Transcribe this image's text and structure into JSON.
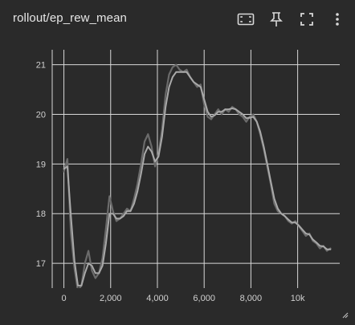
{
  "card": {
    "title": "rollout/ep_rew_mean"
  },
  "toolbar": {
    "icons": [
      "fit-to-data-icon",
      "pin-icon",
      "fullscreen-icon",
      "more-vert-icon"
    ]
  },
  "colors": {
    "background": "#2a2a2a",
    "grid": "#d8d8d8",
    "raw_line": "#6b6b6b",
    "smoothed_line": "#a9a9a9",
    "text": "#e6e6e6"
  },
  "chart_data": {
    "type": "line",
    "title": "rollout/ep_rew_mean",
    "xlabel": "",
    "ylabel": "",
    "xlim": [
      -500,
      11800
    ],
    "ylim": [
      16.5,
      21.3
    ],
    "grid": true,
    "x_ticks": [
      0,
      2000,
      4000,
      6000,
      8000,
      10000
    ],
    "x_tick_labels": [
      "0",
      "2,000",
      "4,000",
      "6,000",
      "8,000",
      "10k"
    ],
    "y_ticks": [
      17,
      18,
      19,
      20,
      21
    ],
    "y_tick_labels": [
      "17",
      "18",
      "19",
      "20",
      "21"
    ],
    "series": [
      {
        "role": "raw",
        "x": [
          0,
          150,
          300,
          450,
          600,
          750,
          900,
          1050,
          1200,
          1350,
          1500,
          1650,
          1800,
          1950,
          2100,
          2250,
          2400,
          2550,
          2700,
          2850,
          3000,
          3150,
          3300,
          3450,
          3600,
          3750,
          3900,
          4050,
          4200,
          4350,
          4500,
          4650,
          4800,
          4950,
          5100,
          5250,
          5400,
          5550,
          5700,
          5850,
          6000,
          6150,
          6300,
          6450,
          6600,
          6750,
          6900,
          7050,
          7200,
          7350,
          7500,
          7650,
          7800,
          7950,
          8100,
          8250,
          8400,
          8550,
          8700,
          8850,
          9000,
          9150,
          9300,
          9450,
          9600,
          9750,
          9900,
          10050,
          10200,
          10350,
          10500,
          10650,
          10800,
          10950,
          11100,
          11250,
          11400
        ],
        "y": [
          18.85,
          19.1,
          17.6,
          16.9,
          16.45,
          16.55,
          17.0,
          17.25,
          16.85,
          16.7,
          16.8,
          17.1,
          17.7,
          18.35,
          18.05,
          17.85,
          17.9,
          18.0,
          18.1,
          18.05,
          18.3,
          18.6,
          19.0,
          19.45,
          19.6,
          19.35,
          18.95,
          19.2,
          19.7,
          20.4,
          20.8,
          20.95,
          21.0,
          20.9,
          20.85,
          20.9,
          20.75,
          20.65,
          20.55,
          20.6,
          20.2,
          19.95,
          19.9,
          20.0,
          20.1,
          20.0,
          20.1,
          20.05,
          20.15,
          20.1,
          20.0,
          19.95,
          19.85,
          19.95,
          20.0,
          19.85,
          19.6,
          19.3,
          18.95,
          18.6,
          18.2,
          18.05,
          18.0,
          17.95,
          17.85,
          17.8,
          17.85,
          17.75,
          17.65,
          17.55,
          17.6,
          17.45,
          17.4,
          17.3,
          17.35,
          17.25,
          17.3
        ]
      },
      {
        "role": "smoothed",
        "x": [
          0,
          150,
          300,
          450,
          600,
          750,
          900,
          1050,
          1200,
          1350,
          1500,
          1650,
          1800,
          1950,
          2100,
          2250,
          2400,
          2550,
          2700,
          2850,
          3000,
          3150,
          3300,
          3450,
          3600,
          3750,
          3900,
          4050,
          4200,
          4350,
          4500,
          4650,
          4800,
          4950,
          5100,
          5250,
          5400,
          5550,
          5700,
          5850,
          6000,
          6150,
          6300,
          6450,
          6600,
          6750,
          6900,
          7050,
          7200,
          7350,
          7500,
          7650,
          7800,
          7950,
          8100,
          8250,
          8400,
          8550,
          8700,
          8850,
          9000,
          9150,
          9300,
          9450,
          9600,
          9750,
          9900,
          10050,
          10200,
          10350,
          10500,
          10650,
          10800,
          10950,
          11100,
          11250,
          11400
        ],
        "y": [
          18.9,
          18.95,
          17.95,
          17.05,
          16.55,
          16.55,
          16.8,
          17.0,
          16.95,
          16.8,
          16.8,
          16.95,
          17.4,
          18.0,
          18.0,
          17.9,
          17.9,
          17.95,
          18.05,
          18.05,
          18.2,
          18.45,
          18.8,
          19.2,
          19.35,
          19.25,
          19.05,
          19.15,
          19.55,
          20.15,
          20.55,
          20.75,
          20.85,
          20.85,
          20.85,
          20.85,
          20.75,
          20.65,
          20.6,
          20.55,
          20.3,
          20.05,
          19.95,
          19.98,
          20.05,
          20.05,
          20.1,
          20.1,
          20.12,
          20.1,
          20.05,
          20.0,
          19.92,
          19.93,
          19.95,
          19.85,
          19.65,
          19.35,
          19.0,
          18.65,
          18.3,
          18.1,
          18.0,
          17.95,
          17.88,
          17.82,
          17.82,
          17.76,
          17.68,
          17.6,
          17.58,
          17.48,
          17.42,
          17.35,
          17.34,
          17.28,
          17.28
        ]
      }
    ]
  }
}
